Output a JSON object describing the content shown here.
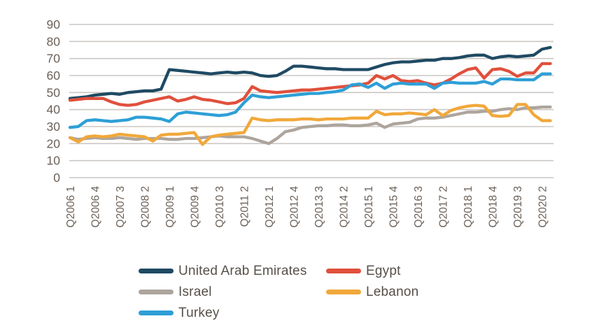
{
  "figure": {
    "background": "#ffffff"
  },
  "chart_data": {
    "type": "line",
    "title": "",
    "xlabel": "",
    "ylabel": "",
    "ylim": [
      0,
      90
    ],
    "y_ticks": [
      0,
      10,
      20,
      30,
      40,
      50,
      60,
      70,
      80,
      90
    ],
    "grid": "horizontal",
    "legend_position": "bottom",
    "x_tick_every": 3,
    "x_labels": [
      "Q2006 1",
      "Q2006 2",
      "Q2006 3",
      "Q2006 4",
      "Q2007 1",
      "Q2007 2",
      "Q2007 3",
      "Q2007 4",
      "Q2008 1",
      "Q2008 2",
      "Q2008 3",
      "Q2008 4",
      "Q2009 1",
      "Q2009 2",
      "Q2009 3",
      "Q2009 4",
      "Q2010 1",
      "Q2010 2",
      "Q2010 3",
      "Q2010 4",
      "Q2011 1",
      "Q2011 2",
      "Q2011 3",
      "Q2011 4",
      "Q2012 1",
      "Q2012 2",
      "Q2012 3",
      "Q2012 4",
      "Q2013 1",
      "Q2013 2",
      "Q2013 3",
      "Q2013 4",
      "Q2014 1",
      "Q2014 2",
      "Q2014 3",
      "Q2014 4",
      "Q2015 1",
      "Q2015 2",
      "Q2015 3",
      "Q2015 4",
      "Q2016 1",
      "Q2016 2",
      "Q2016 3",
      "Q2016 4",
      "Q2017 1",
      "Q2017 2",
      "Q2017 3",
      "Q2017 4",
      "Q2018 1",
      "Q2018 2",
      "Q2018 3",
      "Q2018 4",
      "Q2019 1",
      "Q2019 2",
      "Q2019 3",
      "Q2019 4",
      "Q2020 1",
      "Q2020 2",
      "Q2020 3"
    ],
    "visible_x_tick_labels": [
      "Q2006 1",
      "Q2006 4",
      "Q2007 3",
      "Q2008 2",
      "Q2009 1",
      "Q2009 4",
      "Q2010 3",
      "Q2011 2",
      "Q2012 1",
      "Q2012 4",
      "Q2013 3",
      "Q2014 2",
      "Q2015 1",
      "Q2015 4",
      "Q2016 3",
      "Q2017 2",
      "Q2018 1",
      "Q2018 4",
      "Q2019 3",
      "Q2020 2"
    ],
    "series": [
      {
        "name": "United Arab Emirates",
        "color": "#1f4a63",
        "values": [
          46.5,
          47,
          47.5,
          48.5,
          49,
          49.5,
          49,
          50,
          50.5,
          51,
          51,
          52,
          63.5,
          63,
          62.5,
          62,
          61.5,
          61,
          61.5,
          62,
          61.5,
          62,
          61.5,
          60,
          59.5,
          60,
          62.5,
          65.5,
          65.5,
          65,
          64.5,
          64,
          64,
          63.5,
          63.5,
          63.5,
          63.5,
          65,
          66.5,
          67.5,
          68,
          68,
          68.5,
          69,
          69,
          70,
          70,
          70.5,
          71.5,
          72,
          72,
          70,
          71,
          71.5,
          71,
          71.5,
          72,
          75.5,
          76.5
        ]
      },
      {
        "name": "Egypt",
        "color": "#e0503c",
        "values": [
          45.5,
          46,
          46.5,
          46.5,
          46.5,
          44.5,
          43,
          42.5,
          43,
          44.5,
          45.5,
          46.5,
          47.5,
          45,
          46,
          47.5,
          46,
          45.5,
          44.5,
          43.5,
          44,
          46.5,
          53.5,
          51,
          50.5,
          50,
          50.5,
          51,
          51.5,
          51.5,
          52,
          52.5,
          53,
          53.5,
          54,
          54.5,
          55.5,
          60,
          58,
          60,
          57,
          56.5,
          57,
          55.5,
          54.5,
          55.5,
          58,
          61,
          63.5,
          64.5,
          58.5,
          63.5,
          64,
          62.5,
          59.5,
          61.5,
          61.5,
          67,
          67
        ]
      },
      {
        "name": "Israel",
        "color": "#ada59d",
        "values": [
          23.5,
          22.5,
          23,
          23.5,
          23,
          23,
          23.5,
          23,
          22.5,
          23,
          23,
          23,
          22.5,
          22.5,
          23,
          23,
          23.5,
          24,
          24.5,
          24,
          24,
          24,
          23,
          21.5,
          20,
          23,
          27,
          28,
          29.5,
          30,
          30.5,
          30.5,
          31,
          31,
          30.5,
          30.5,
          31,
          32,
          29.5,
          31.5,
          32,
          32.5,
          34.5,
          35,
          35,
          35.5,
          36.5,
          37.5,
          38.5,
          38.5,
          39,
          39,
          40,
          40.5,
          40,
          41,
          41,
          41.5,
          41.5
        ]
      },
      {
        "name": "Lebanon",
        "color": "#f1a83a",
        "values": [
          23.5,
          21,
          24,
          24.5,
          24,
          24.5,
          25.5,
          25,
          24.5,
          24,
          21.5,
          25,
          25.5,
          25.5,
          26,
          26.5,
          19.5,
          24,
          25,
          25.5,
          26,
          26.5,
          35,
          34,
          33.5,
          34,
          34,
          34,
          34.5,
          34.5,
          34,
          34.5,
          34.5,
          34.5,
          35,
          35,
          35,
          39,
          37,
          37.5,
          37.5,
          38,
          37.5,
          37,
          40,
          36.5,
          39.5,
          41,
          42,
          42.5,
          42,
          36.5,
          36,
          36.5,
          43,
          43,
          37,
          33.5,
          33.5
        ]
      },
      {
        "name": "Turkey",
        "color": "#2e9fd6",
        "values": [
          29.5,
          30,
          33.5,
          34,
          33.5,
          33,
          33.5,
          34,
          35.5,
          35.5,
          35,
          34.5,
          33,
          37.5,
          38.5,
          38,
          37.5,
          37,
          36.5,
          37,
          38.5,
          44,
          48.5,
          47.5,
          47,
          47.5,
          48,
          48.5,
          49,
          49.5,
          49.5,
          50,
          50.5,
          51.5,
          54.5,
          55,
          53,
          55.5,
          52.5,
          55,
          55.5,
          55,
          55,
          55,
          52.5,
          55.5,
          56,
          55.5,
          55.5,
          55.5,
          56.5,
          55,
          58,
          58,
          57.5,
          57.5,
          57.5,
          61,
          61
        ]
      }
    ],
    "colors": {
      "gridline": "#cbc7c3",
      "tick_label": "#6b6159",
      "legend_text": "#57504a"
    }
  }
}
